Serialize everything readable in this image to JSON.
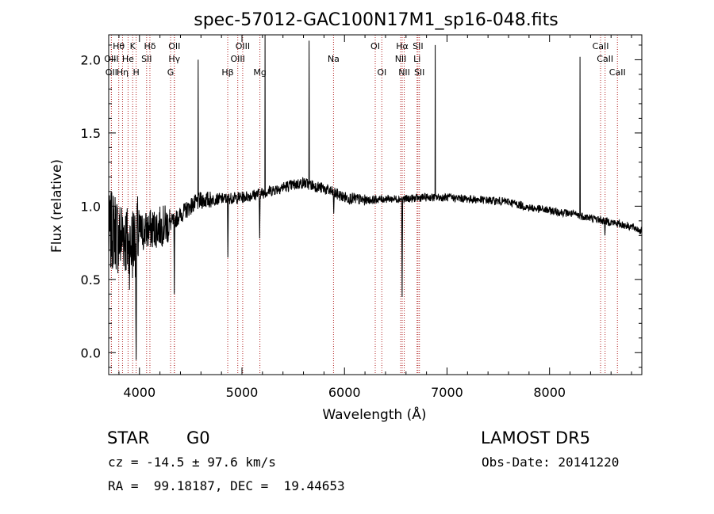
{
  "chart_data": {
    "type": "line",
    "title": "spec-57012-GAC100N17M1_sp16-048.fits",
    "xlabel": "Wavelength (Å)",
    "ylabel": "Flux (relative)",
    "xlim": [
      3700,
      8900
    ],
    "ylim": [
      -0.15,
      2.17
    ],
    "xticks": [
      4000,
      5000,
      6000,
      7000,
      8000
    ],
    "yticks": [
      0.0,
      0.5,
      1.0,
      1.5,
      2.0
    ],
    "grid": false,
    "line_color": "#000000",
    "marker_color": "#b22222",
    "spectrum_anchors": [
      [
        3700,
        0.8
      ],
      [
        3760,
        0.85
      ],
      [
        3800,
        0.78
      ],
      [
        3850,
        0.82
      ],
      [
        3900,
        0.7
      ],
      [
        3950,
        0.78
      ],
      [
        4000,
        0.82
      ],
      [
        4100,
        0.84
      ],
      [
        4200,
        0.86
      ],
      [
        4300,
        0.88
      ],
      [
        4400,
        0.94
      ],
      [
        4500,
        1.0
      ],
      [
        4600,
        1.04
      ],
      [
        4800,
        1.05
      ],
      [
        5000,
        1.06
      ],
      [
        5200,
        1.09
      ],
      [
        5400,
        1.13
      ],
      [
        5600,
        1.16
      ],
      [
        5800,
        1.12
      ],
      [
        6000,
        1.06
      ],
      [
        6200,
        1.04
      ],
      [
        6400,
        1.05
      ],
      [
        6600,
        1.05
      ],
      [
        6800,
        1.06
      ],
      [
        7000,
        1.06
      ],
      [
        7200,
        1.05
      ],
      [
        7400,
        1.04
      ],
      [
        7600,
        1.03
      ],
      [
        7800,
        0.99
      ],
      [
        8000,
        0.97
      ],
      [
        8200,
        0.95
      ],
      [
        8400,
        0.92
      ],
      [
        8600,
        0.89
      ],
      [
        8800,
        0.86
      ],
      [
        8900,
        0.83
      ]
    ],
    "spikes": [
      {
        "x": 4572,
        "y": 2.0
      },
      {
        "x": 5224,
        "y": 2.17
      },
      {
        "x": 5656,
        "y": 2.13
      },
      {
        "x": 6884,
        "y": 2.1
      },
      {
        "x": 8298,
        "y": 2.02
      }
    ],
    "dips": [
      {
        "x": 3968,
        "y": -0.05
      },
      {
        "x": 4340,
        "y": 0.4
      },
      {
        "x": 4862,
        "y": 0.65
      },
      {
        "x": 5172,
        "y": 0.78
      },
      {
        "x": 5895,
        "y": 0.95
      },
      {
        "x": 6563,
        "y": 0.38
      },
      {
        "x": 8540,
        "y": 0.8
      }
    ],
    "lines": [
      {
        "label": "Hθ",
        "x": 3798,
        "row": 0
      },
      {
        "label": "K",
        "x": 3934,
        "row": 0
      },
      {
        "label": "Hδ",
        "x": 4102,
        "row": 0
      },
      {
        "label": "OII",
        "x": 4341,
        "row": 0
      },
      {
        "label": "OIII",
        "x": 5007,
        "row": 0
      },
      {
        "label": "OI",
        "x": 6300,
        "row": 0
      },
      {
        "label": "Hα",
        "x": 6563,
        "row": 0
      },
      {
        "label": "SII",
        "x": 6717,
        "row": 0
      },
      {
        "label": "CaII",
        "x": 8498,
        "row": 0
      },
      {
        "label": "OIII",
        "x": 3727,
        "row": 1
      },
      {
        "label": "He",
        "x": 3889,
        "row": 1
      },
      {
        "label": "SII",
        "x": 4070,
        "row": 1
      },
      {
        "label": "Hγ",
        "x": 4340,
        "row": 1
      },
      {
        "label": "OIII",
        "x": 4959,
        "row": 1
      },
      {
        "label": "Na",
        "x": 5893,
        "row": 1
      },
      {
        "label": "NII",
        "x": 6548,
        "row": 1
      },
      {
        "label": "Li",
        "x": 6708,
        "row": 1
      },
      {
        "label": "CaII",
        "x": 8542,
        "row": 1
      },
      {
        "label": "OII",
        "x": 3726,
        "row": 2
      },
      {
        "label": "Hη",
        "x": 3835,
        "row": 2
      },
      {
        "label": "H",
        "x": 3968,
        "row": 2
      },
      {
        "label": "G",
        "x": 4304,
        "row": 2
      },
      {
        "label": "Hβ",
        "x": 4861,
        "row": 2
      },
      {
        "label": "Mg",
        "x": 5175,
        "row": 2
      },
      {
        "label": "OI",
        "x": 6364,
        "row": 2
      },
      {
        "label": "NII",
        "x": 6583,
        "row": 2
      },
      {
        "label": "SII",
        "x": 6731,
        "row": 2
      },
      {
        "label": "CaII",
        "x": 8662,
        "row": 2
      }
    ]
  },
  "info": {
    "class_label": "STAR",
    "subclass": "G0",
    "survey": "LAMOST DR5",
    "cz": "cz = -14.5 ± 97.6 km/s",
    "obs_date": "Obs-Date: 20141220",
    "coords": "RA =  99.18187, DEC =  19.44653"
  }
}
